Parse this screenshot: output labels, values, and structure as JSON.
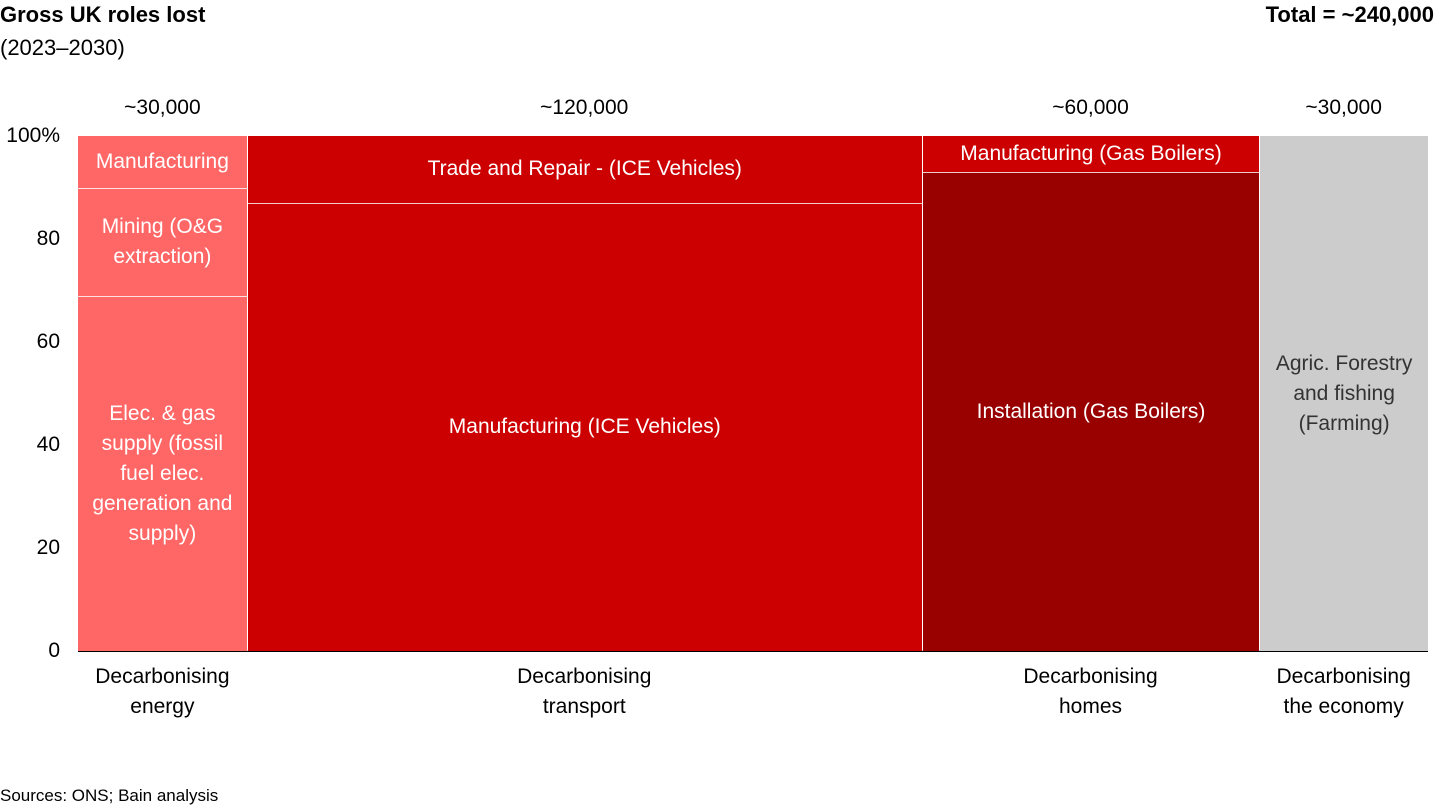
{
  "chart_data": {
    "type": "marimekko",
    "title": "Gross UK roles lost",
    "subtitle": "(2023–2030)",
    "total_label": "Total = ~240,000",
    "source": "Sources: ONS; Bain analysis",
    "ylim": [
      0,
      100
    ],
    "yticks": [
      0,
      20,
      40,
      60,
      80,
      {
        "value": 100,
        "label": "100%"
      }
    ],
    "columns": [
      {
        "name": "Decarbonising energy",
        "width": 30000,
        "width_label": "~30,000",
        "segments": [
          {
            "name": "Elec. & gas supply (fossil fuel elec. generation and supply)",
            "value": 69,
            "color": "#ff6666"
          },
          {
            "name": "Mining (O&G extraction)",
            "value": 21,
            "color": "#ff6666"
          },
          {
            "name": "Manufacturing",
            "value": 10,
            "color": "#ff6666"
          }
        ]
      },
      {
        "name": "Decarbonising transport",
        "width": 120000,
        "width_label": "~120,000",
        "segments": [
          {
            "name": "Manufacturing (ICE Vehicles)",
            "value": 87,
            "color": "#cc0000"
          },
          {
            "name": "Trade and Repair - (ICE Vehicles)",
            "value": 13,
            "color": "#cc0000"
          }
        ]
      },
      {
        "name": "Decarbonising homes",
        "width": 60000,
        "width_label": "~60,000",
        "segments": [
          {
            "name": "Installation (Gas Boilers)",
            "value": 93,
            "color": "#990000"
          },
          {
            "name": "Manufacturing (Gas Boilers)",
            "value": 7,
            "color": "#cc0000"
          }
        ]
      },
      {
        "name": "Decarbonising the economy",
        "width": 30000,
        "width_label": "~30,000",
        "segments": [
          {
            "name": "Agric. Forestry and fishing (Farming)",
            "value": 100,
            "color": "#cccccc"
          }
        ]
      }
    ]
  }
}
